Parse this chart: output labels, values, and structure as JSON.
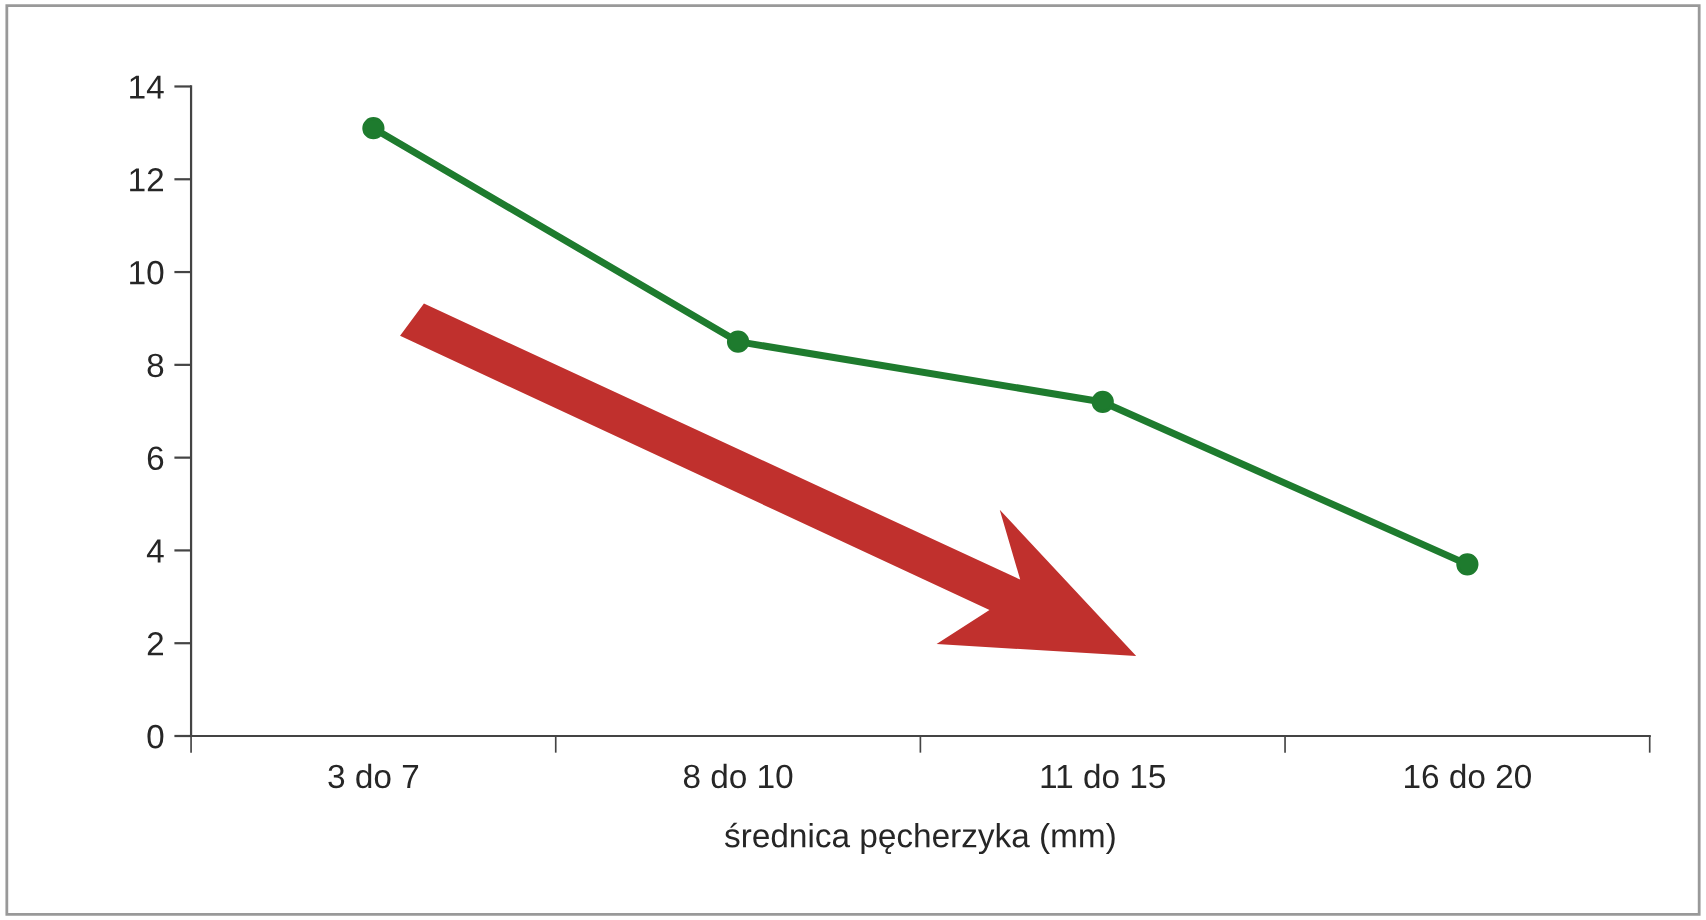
{
  "chart_data": {
    "type": "line",
    "xlabel": "średnica pęcherzyka (mm)",
    "categories": [
      "3 do 7",
      "8 do 10",
      "11 do 15",
      "16 do 20"
    ],
    "series": [
      {
        "color": "#1e7b2e",
        "values": [
          13.1,
          8.5,
          7.2,
          3.7
        ]
      }
    ],
    "ylim": [
      0,
      14
    ],
    "yticks": [
      0,
      2,
      4,
      6,
      8,
      10,
      12,
      14
    ],
    "grid": false,
    "marker": "circle",
    "line_style": "solid"
  }
}
